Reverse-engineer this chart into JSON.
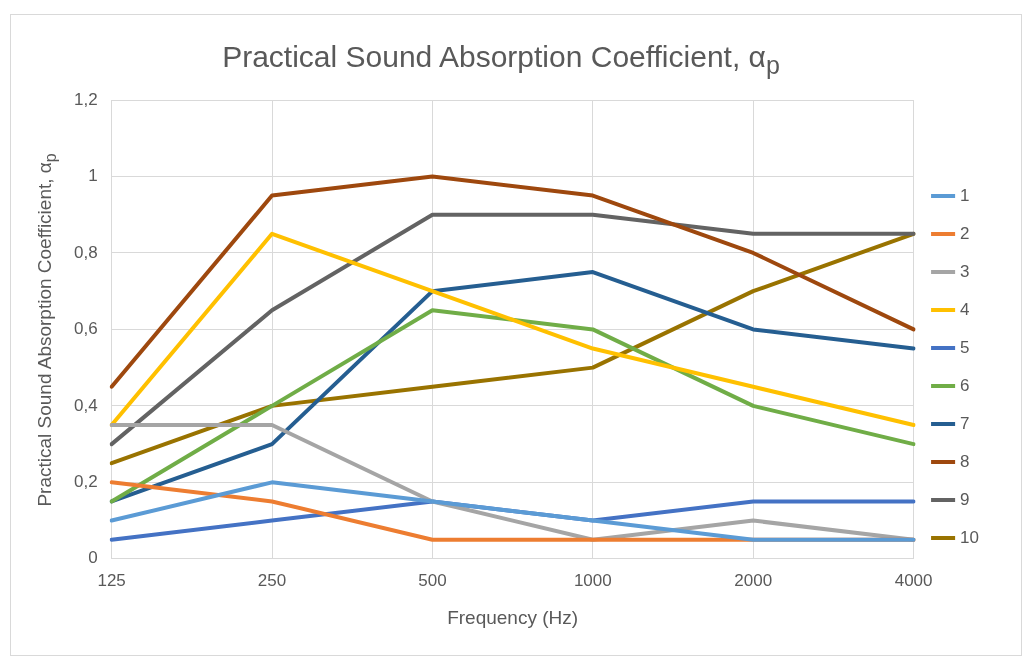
{
  "chart_data": {
    "type": "line",
    "title": "Practical Sound Absorption Coefficient, α$_{p}$",
    "xlabel": "Frequency (Hz)",
    "ylabel": "Practical Sound Absorption Coefficient, α$_{p}$",
    "categories": [
      "125",
      "250",
      "500",
      "1000",
      "2000",
      "4000"
    ],
    "ylim": [
      0,
      1.2
    ],
    "yticks": [
      0,
      {
        "value": 0.2,
        "label": "0,2"
      },
      {
        "value": 0.4,
        "label": "0,4"
      },
      {
        "value": 0.6,
        "label": "0,6"
      },
      {
        "value": 0.8,
        "label": "0,8"
      },
      1,
      {
        "value": 1.2,
        "label": "1,2"
      }
    ],
    "grid": true,
    "legend": "right",
    "marker": "none",
    "line_style": "solid",
    "series": [
      {
        "name": "1",
        "color": "#5b9bd5",
        "values": [
          0.1,
          0.2,
          0.15,
          0.1,
          0.05,
          0.05
        ]
      },
      {
        "name": "2",
        "color": "#ed7d31",
        "values": [
          0.2,
          0.15,
          0.05,
          0.05,
          0.05,
          0.05
        ]
      },
      {
        "name": "3",
        "color": "#a5a5a5",
        "values": [
          0.35,
          0.35,
          0.15,
          0.05,
          0.1,
          0.05
        ]
      },
      {
        "name": "4",
        "color": "#ffc000",
        "values": [
          0.35,
          0.85,
          0.7,
          0.55,
          0.45,
          0.35
        ]
      },
      {
        "name": "5",
        "color": "#4472c4",
        "values": [
          0.05,
          0.1,
          0.15,
          0.1,
          0.15,
          0.15
        ]
      },
      {
        "name": "6",
        "color": "#70ad47",
        "values": [
          0.15,
          0.4,
          0.65,
          0.6,
          0.4,
          0.3
        ]
      },
      {
        "name": "7",
        "color": "#255e91",
        "values": [
          0.15,
          0.3,
          0.7,
          0.75,
          0.6,
          0.55
        ]
      },
      {
        "name": "8",
        "color": "#9e480e",
        "values": [
          0.45,
          0.95,
          1.0,
          0.95,
          0.8,
          0.6
        ]
      },
      {
        "name": "9",
        "color": "#636363",
        "values": [
          0.3,
          0.65,
          0.9,
          0.9,
          0.85,
          0.85
        ]
      },
      {
        "name": "10",
        "color": "#997300",
        "values": [
          0.25,
          0.4,
          0.45,
          0.5,
          0.7,
          0.85
        ]
      }
    ]
  }
}
